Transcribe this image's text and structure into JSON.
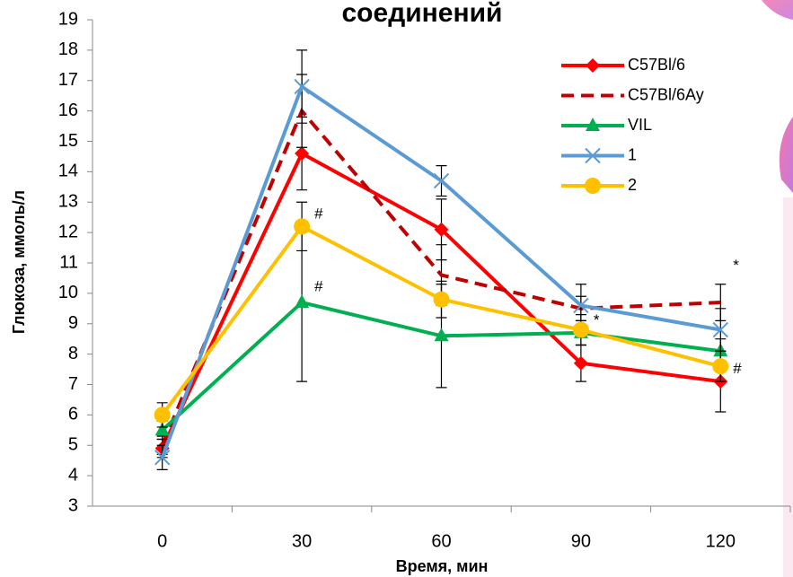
{
  "chart_data": {
    "type": "line",
    "title": "соединений",
    "x_label": "Время, мин",
    "y_label": "Глюкоза, ммоль/л",
    "categories": [
      "0",
      "30",
      "60",
      "90",
      "120"
    ],
    "ylim": [
      3,
      19
    ],
    "yticks": [
      3,
      4,
      5,
      6,
      7,
      8,
      9,
      10,
      11,
      12,
      13,
      14,
      15,
      16,
      17,
      18,
      19
    ],
    "series": [
      {
        "name": "C57Bl/6",
        "color": "#ff0000",
        "marker": "diamond",
        "dash": false,
        "values": [
          4.9,
          14.6,
          12.1,
          7.7,
          7.1
        ],
        "errors": [
          0.3,
          1.2,
          1.0,
          0.6,
          1.0
        ]
      },
      {
        "name": "C57Bl/6Ay",
        "color": "#c00000",
        "marker": "none",
        "dash": true,
        "values": [
          5.0,
          16.0,
          10.6,
          9.5,
          9.7
        ],
        "errors": [
          0.3,
          1.2,
          1.0,
          0.4,
          0.6
        ]
      },
      {
        "name": "VIL",
        "color": "#00b050",
        "marker": "triangle",
        "dash": false,
        "values": [
          5.5,
          9.7,
          8.6,
          8.7,
          8.1
        ],
        "errors": [
          0.3,
          2.6,
          1.7,
          0.4,
          0.4
        ]
      },
      {
        "name": "1",
        "color": "#5b9bd5",
        "marker": "x",
        "dash": false,
        "values": [
          4.6,
          16.8,
          13.7,
          9.6,
          8.8
        ],
        "errors": [
          0.4,
          1.2,
          0.5,
          0.7,
          0.7
        ]
      },
      {
        "name": "2",
        "color": "#ffc000",
        "marker": "circle",
        "dash": false,
        "values": [
          6.0,
          12.2,
          9.8,
          8.8,
          7.6
        ],
        "errors": [
          0.4,
          0.8,
          0.6,
          0.5,
          0.5
        ]
      }
    ],
    "annotations": [
      {
        "text": "#",
        "category": 1,
        "y": 12.6
      },
      {
        "text": "#",
        "category": 1,
        "y": 10.2
      },
      {
        "text": "*",
        "category": 3,
        "y": 9.1
      },
      {
        "text": "*",
        "category": 4,
        "y": 10.9
      },
      {
        "text": "#",
        "category": 4,
        "y": 7.5
      }
    ]
  }
}
